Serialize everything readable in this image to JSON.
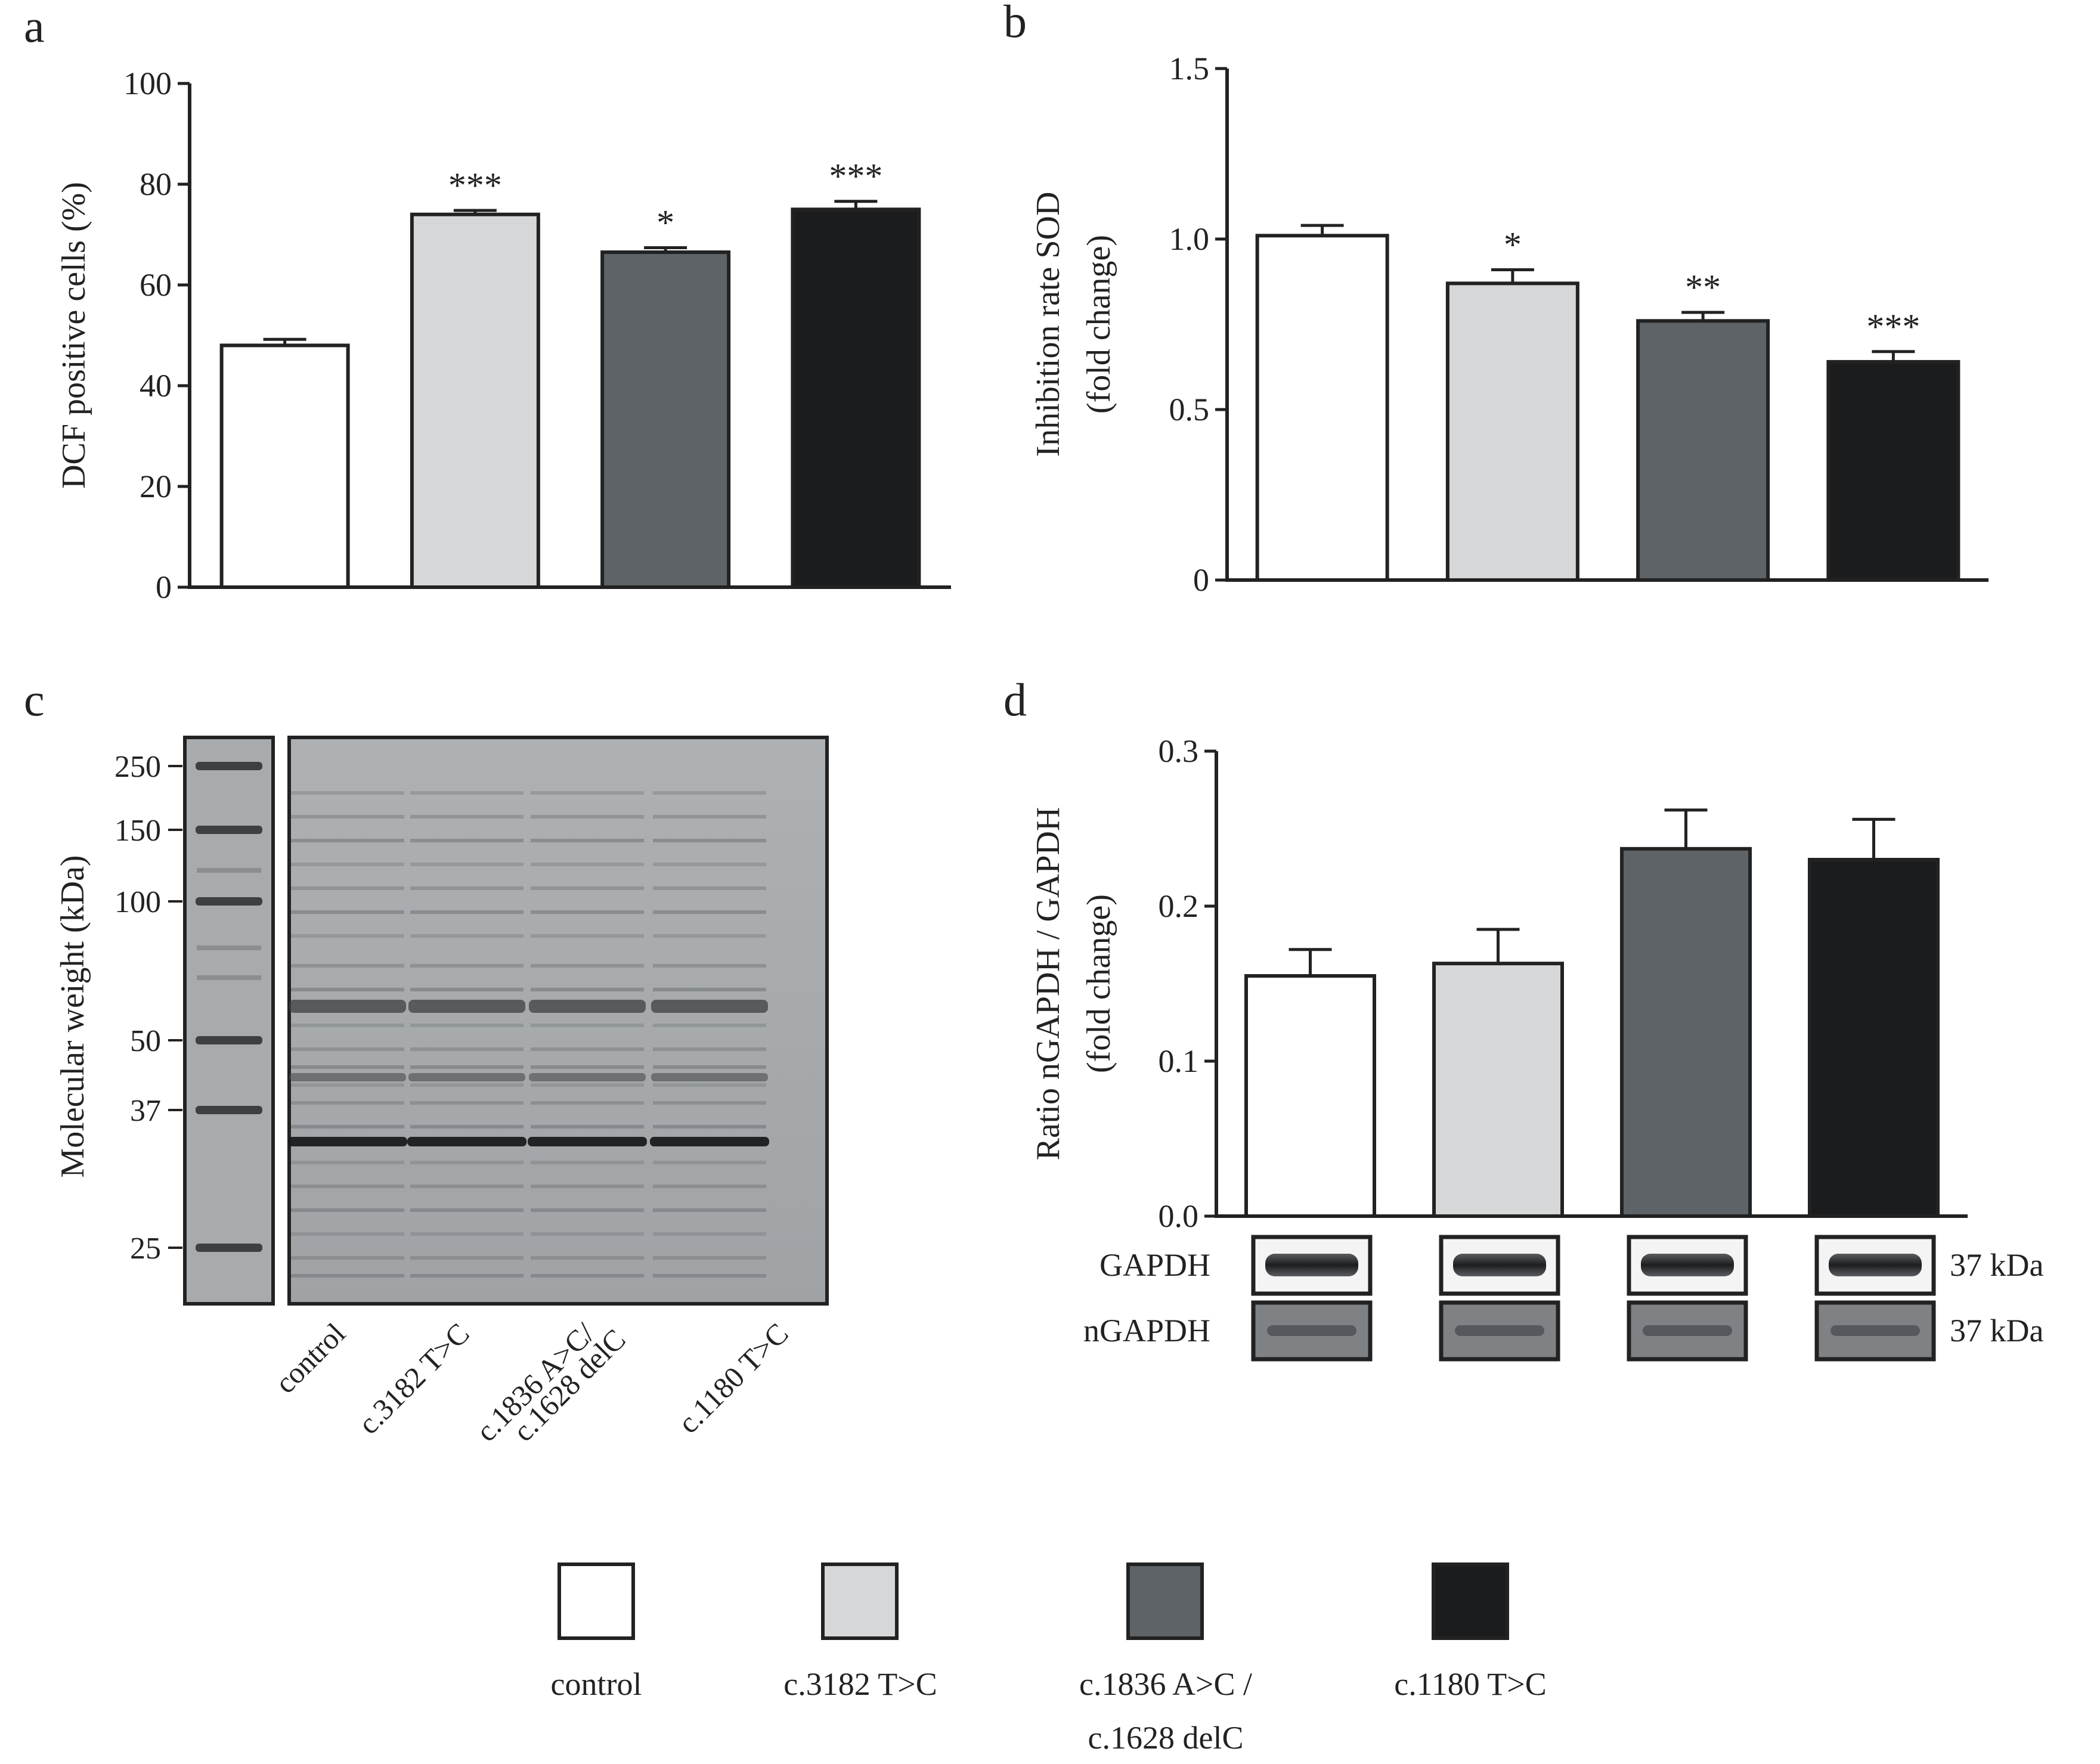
{
  "groups": [
    "control",
    "c.3182 T>C",
    "c.1836 A>C / c.1628 delC",
    "c.1180 T>C"
  ],
  "colors": [
    "#ffffff",
    "#d6d7d9",
    "#5d6366",
    "#1b1c1e"
  ],
  "chart_data": [
    {
      "panel": "a",
      "type": "bar",
      "categories": [
        "control",
        "c.3182 T>C",
        "c.1836 A>C / c.1628 delC",
        "c.1180 T>C"
      ],
      "values": [
        48,
        74,
        66.5,
        75
      ],
      "errors": [
        1.2,
        0.8,
        0.9,
        1.6
      ],
      "significance": [
        "",
        "***",
        "*",
        "***"
      ],
      "title": "",
      "xlabel": "",
      "ylabel": "DCF positive cells (%)",
      "ylim": [
        0,
        100
      ],
      "yticks": [
        "0",
        "20",
        "40",
        "60",
        "80",
        "100"
      ]
    },
    {
      "panel": "b",
      "type": "bar",
      "categories": [
        "control",
        "c.3182 T>C",
        "c.1836 A>C / c.1628 delC",
        "c.1180 T>C"
      ],
      "values": [
        1.01,
        0.87,
        0.76,
        0.64
      ],
      "errors": [
        0.03,
        0.04,
        0.025,
        0.03
      ],
      "significance": [
        "",
        "*",
        "**",
        "***"
      ],
      "title": "",
      "xlabel": "",
      "ylabel": [
        "Inhibition rate SOD",
        "(fold change)"
      ],
      "ylim": [
        0,
        1.5
      ],
      "yticks": [
        "0",
        "0.5",
        "1.0",
        "1.5"
      ]
    },
    {
      "panel": "d",
      "type": "bar",
      "categories": [
        "control",
        "c.3182 T>C",
        "c.1836 A>C / c.1628 delC",
        "c.1180 T>C"
      ],
      "values": [
        0.155,
        0.163,
        0.237,
        0.23
      ],
      "errors": [
        0.017,
        0.022,
        0.025,
        0.026
      ],
      "significance": [
        "",
        "",
        "",
        ""
      ],
      "title": "",
      "xlabel": "",
      "ylabel": [
        "Ratio nGAPDH / GAPDH",
        "(fold change)"
      ],
      "ylim": [
        0,
        0.3
      ],
      "yticks": [
        "0.0",
        "0.1",
        "0.2",
        "0.3"
      ]
    }
  ],
  "panel_c": {
    "ylabel": "Molecular weight (kDa)",
    "markers": [
      "250",
      "150",
      "100",
      "50",
      "37",
      "25"
    ],
    "lanes": [
      "control",
      "c.3182 T>C",
      "c.1836 A>C/",
      "c.1628 delC",
      "c.1180 T>C"
    ]
  },
  "panel_d_blots": {
    "rows": [
      "GAPDH",
      "nGAPDH"
    ],
    "sizes": [
      "37 kDa",
      "37 kDa"
    ]
  },
  "legend": {
    "labels": [
      "control",
      "c.3182 T>C",
      "c.1836 A>C /",
      "c.1628 delC",
      "c.1180 T>C"
    ]
  },
  "panel_letters": [
    "a",
    "b",
    "c",
    "d"
  ]
}
